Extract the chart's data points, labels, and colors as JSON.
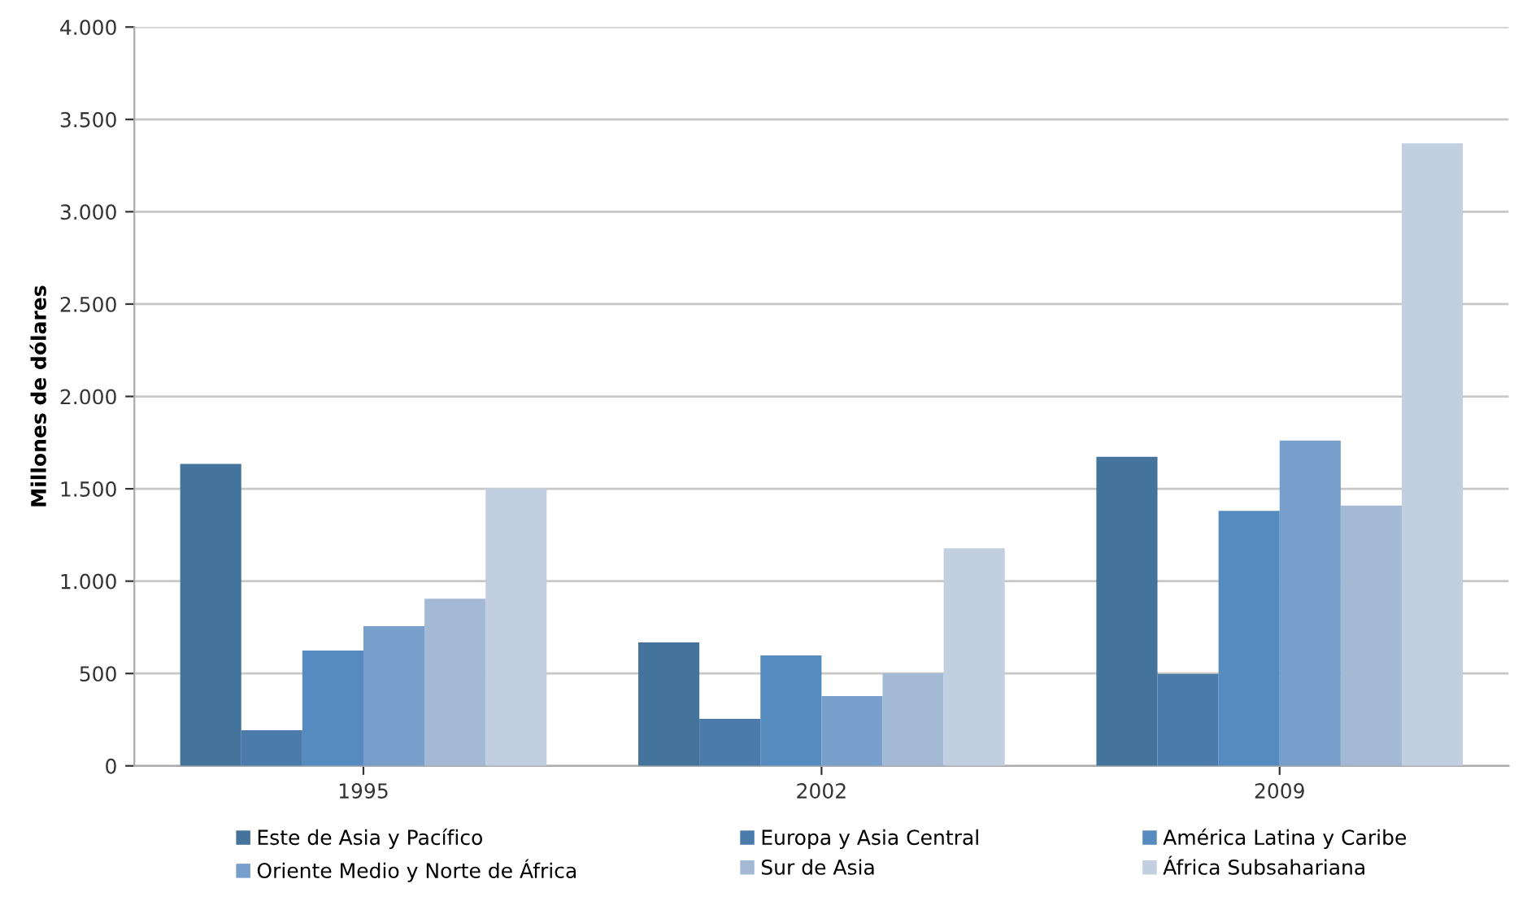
{
  "chart_data": {
    "type": "bar",
    "ylabel": "Millones de dólares",
    "categories": [
      "1995",
      "2002",
      "2009"
    ],
    "series": [
      {
        "name": "Este de Asia y Pacífico",
        "color": "#44739c",
        "values": [
          1635,
          668,
          1673
        ]
      },
      {
        "name": "Europa y Asia Central",
        "color": "#4a7bab",
        "values": [
          193,
          255,
          498
        ]
      },
      {
        "name": "América Latina y Caribe",
        "color": "#558bbf",
        "values": [
          624,
          598,
          1380
        ]
      },
      {
        "name": "Oriente Medio y Norte de África",
        "color": "#789fcb",
        "values": [
          756,
          378,
          1761
        ]
      },
      {
        "name": "Sur de Asia",
        "color": "#a4b9d4",
        "values": [
          905,
          501,
          1409
        ]
      },
      {
        "name": "África Subsahariana",
        "color": "#c2cfe0",
        "values": [
          1503,
          1178,
          3370
        ]
      }
    ],
    "ylim": [
      0,
      4000
    ],
    "yticks": [
      {
        "value": 0,
        "label": "0"
      },
      {
        "value": 500,
        "label": "500"
      },
      {
        "value": 1000,
        "label": "1.000"
      },
      {
        "value": 1500,
        "label": "1.500"
      },
      {
        "value": 2000,
        "label": "2.000"
      },
      {
        "value": 2500,
        "label": "2.500"
      },
      {
        "value": 3000,
        "label": "3.000"
      },
      {
        "value": 3500,
        "label": "3.500"
      },
      {
        "value": 4000,
        "label": "4.000"
      }
    ],
    "grid": "y",
    "legend": "bottom"
  }
}
